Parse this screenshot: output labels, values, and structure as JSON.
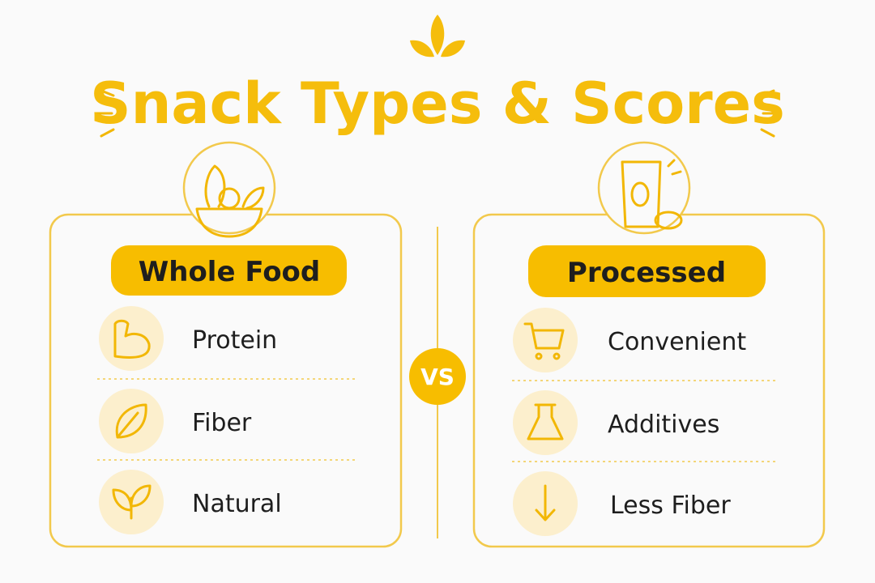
{
  "title": "Snack Types & Scores",
  "vs": "VS",
  "left": {
    "label": "Whole Food",
    "items": [
      "Protein",
      "Fiber",
      "Natural"
    ]
  },
  "right": {
    "label": "Processed",
    "items": [
      "Convenient",
      "Additives",
      "Less Fiber"
    ]
  }
}
